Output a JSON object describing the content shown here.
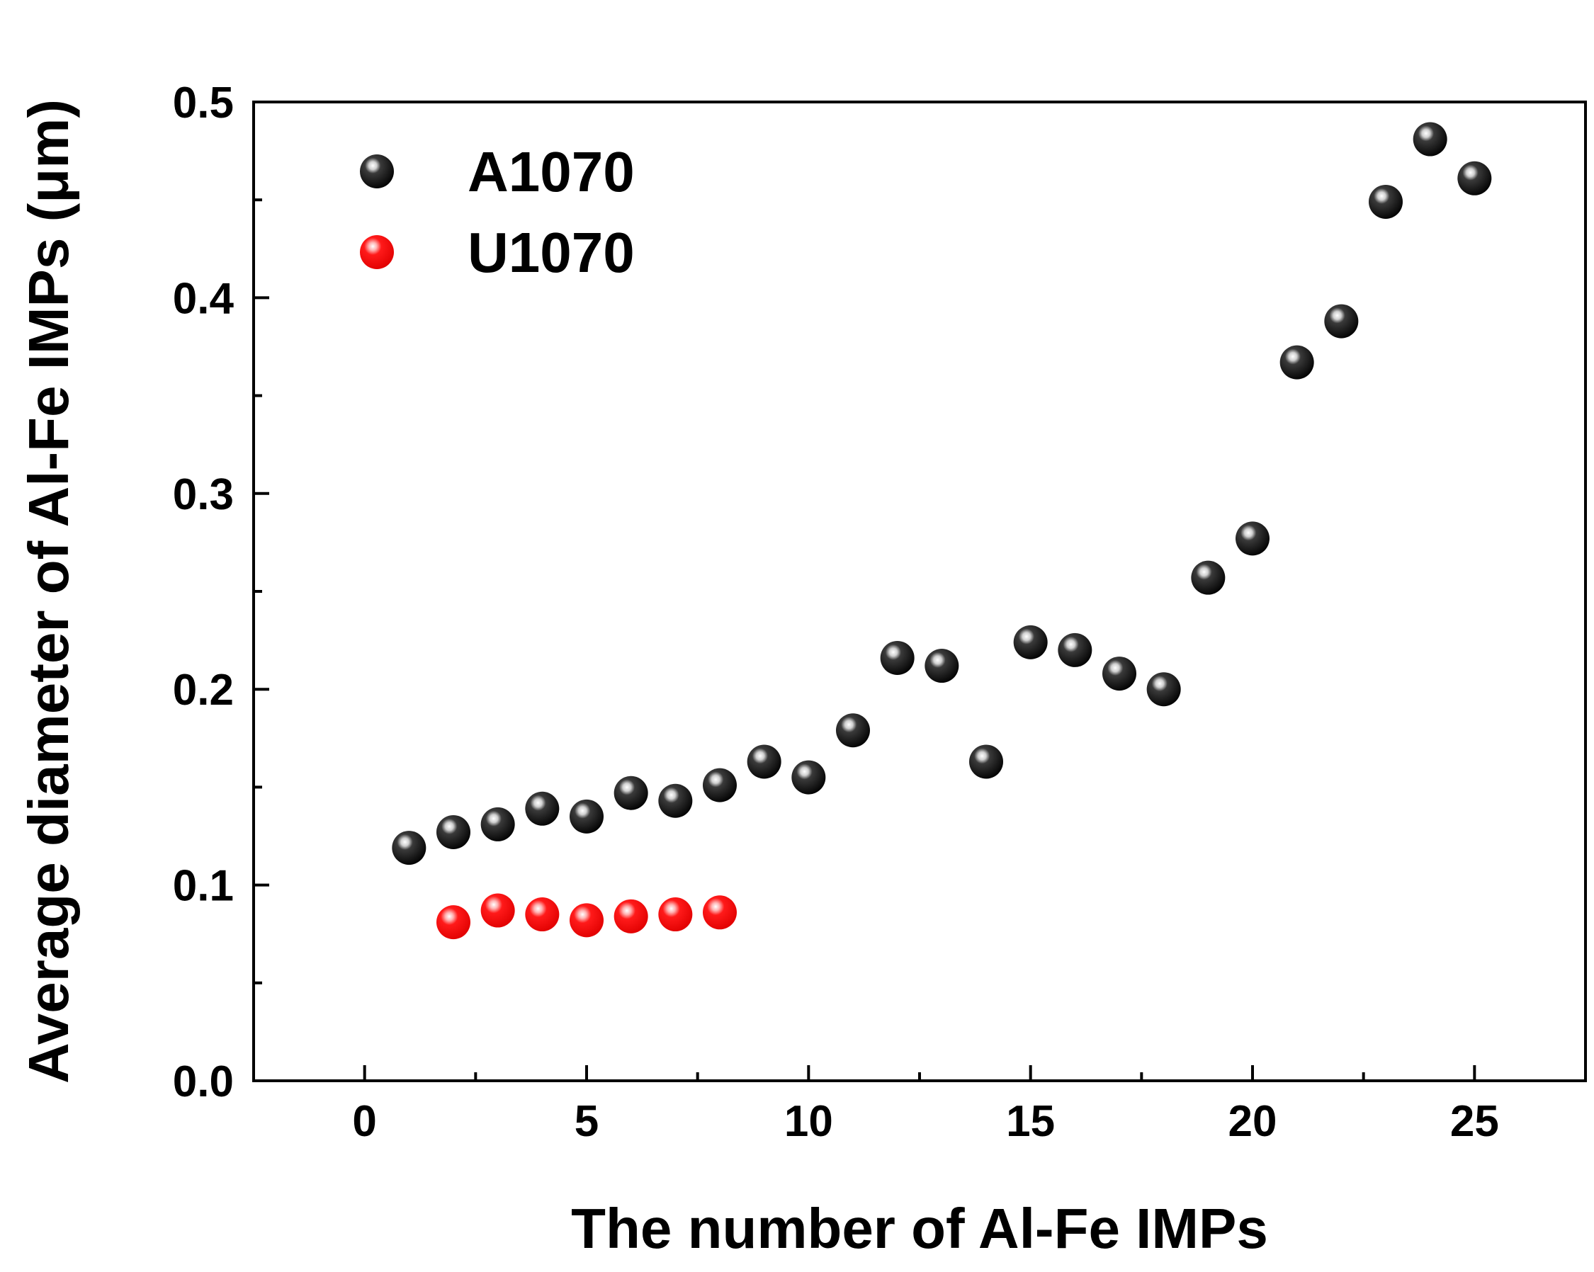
{
  "chart_data": {
    "type": "scatter",
    "xlabel": "The number of Al-Fe IMPs",
    "ylabel": "Average diameter of Al-Fe IMPs (μm)",
    "xlim": [
      -2.5,
      27.5
    ],
    "ylim": [
      0.0,
      0.5
    ],
    "x_ticks": [
      0,
      5,
      10,
      15,
      20,
      25
    ],
    "y_ticks": [
      0.0,
      0.1,
      0.2,
      0.3,
      0.4,
      0.5
    ],
    "x_tick_labels": [
      "0",
      "5",
      "10",
      "15",
      "20",
      "25"
    ],
    "y_tick_labels": [
      "0.0",
      "0.1",
      "0.2",
      "0.3",
      "0.4",
      "0.5"
    ],
    "grid": false,
    "legend_position": "top-left",
    "series": [
      {
        "name": "A1070",
        "color": "#000000",
        "marker": "sphere",
        "x": [
          1,
          2,
          3,
          4,
          5,
          6,
          7,
          8,
          9,
          10,
          11,
          12,
          13,
          14,
          15,
          16,
          17,
          18,
          19,
          20,
          21,
          22,
          23,
          24,
          25
        ],
        "y": [
          0.119,
          0.127,
          0.131,
          0.139,
          0.135,
          0.147,
          0.143,
          0.151,
          0.163,
          0.155,
          0.179,
          0.216,
          0.212,
          0.163,
          0.224,
          0.22,
          0.208,
          0.2,
          0.257,
          0.277,
          0.367,
          0.388,
          0.449,
          0.481,
          0.461
        ]
      },
      {
        "name": "U1070",
        "color": "#ff0000",
        "marker": "sphere",
        "x": [
          2,
          3,
          4,
          5,
          6,
          7,
          8
        ],
        "y": [
          0.081,
          0.087,
          0.085,
          0.082,
          0.084,
          0.085,
          0.086
        ]
      }
    ]
  }
}
